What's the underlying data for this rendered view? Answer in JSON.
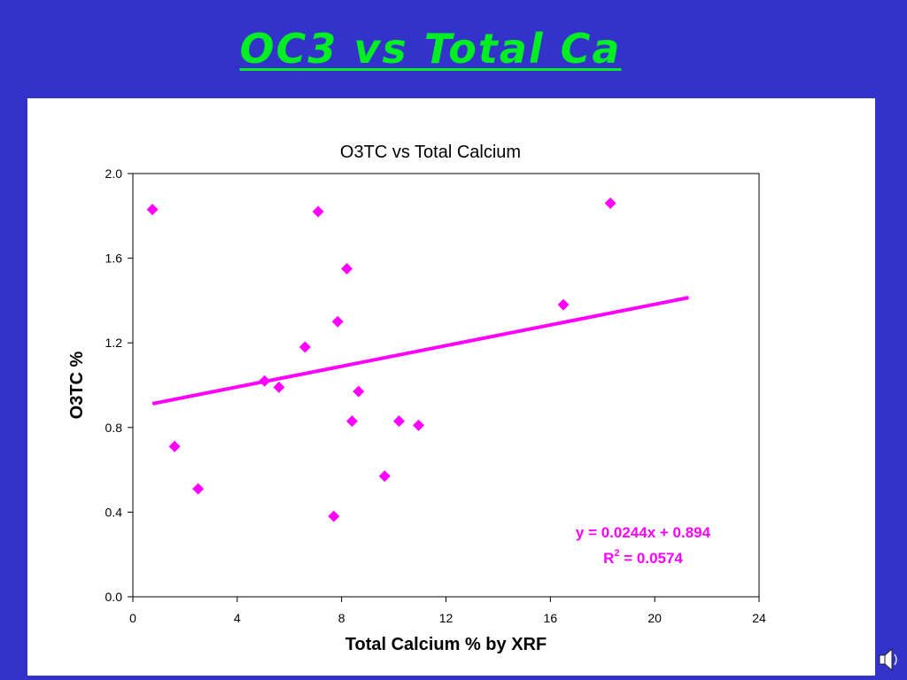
{
  "slide": {
    "title": "OC3  vs Total Ca"
  },
  "colors": {
    "background": "#3333cc",
    "title": "#00ee22",
    "series": "#ff00ff",
    "trendline": "#ff00ff"
  },
  "chart_data": {
    "type": "scatter",
    "title": "O3TC vs Total Calcium",
    "xlabel": "Total Calcium % by XRF",
    "ylabel": "O3TC %",
    "xlim": [
      0,
      24
    ],
    "ylim": [
      0.0,
      2.0
    ],
    "xticks": [
      "0",
      "4",
      "8",
      "12",
      "16",
      "20",
      "24"
    ],
    "yticks": [
      "0.0",
      "0.4",
      "0.8",
      "1.2",
      "1.6",
      "2.0"
    ],
    "grid": false,
    "legend": "none",
    "series": [
      {
        "marker": "diamond",
        "points": [
          [
            0.75,
            1.83
          ],
          [
            1.6,
            0.71
          ],
          [
            2.5,
            0.51
          ],
          [
            5.05,
            1.02
          ],
          [
            5.6,
            0.99
          ],
          [
            6.6,
            1.18
          ],
          [
            7.1,
            1.82
          ],
          [
            7.7,
            0.38
          ],
          [
            7.85,
            1.3
          ],
          [
            8.2,
            1.55
          ],
          [
            8.4,
            0.83
          ],
          [
            8.65,
            0.97
          ],
          [
            9.65,
            0.57
          ],
          [
            10.2,
            0.83
          ],
          [
            10.95,
            0.81
          ],
          [
            16.5,
            1.38
          ],
          [
            18.3,
            1.86
          ]
        ]
      }
    ],
    "trendline": {
      "type": "linear",
      "x_range": [
        0.75,
        21.3
      ],
      "slope": 0.0244,
      "intercept": 0.894,
      "equation": "y = 0.0244x + 0.894",
      "r2_prefix": "R",
      "r2_exponent": "2",
      "r2_value": " = 0.0574"
    }
  }
}
